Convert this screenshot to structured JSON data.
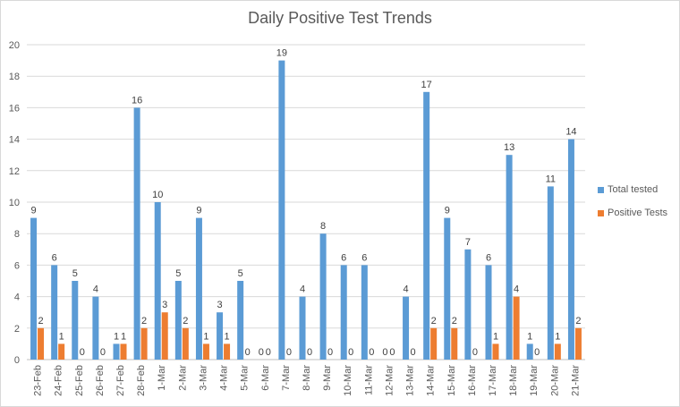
{
  "chart_data": {
    "type": "bar",
    "title": "Daily Positive Test Trends",
    "xlabel": "",
    "ylabel": "",
    "ylim": [
      0,
      20
    ],
    "yticks": [
      0,
      2,
      4,
      6,
      8,
      10,
      12,
      14,
      16,
      18,
      20
    ],
    "grid": true,
    "legend_position": "right",
    "categories": [
      "23-Feb",
      "24-Feb",
      "25-Feb",
      "26-Feb",
      "27-Feb",
      "28-Feb",
      "1-Mar",
      "2-Mar",
      "3-Mar",
      "4-Mar",
      "5-Mar",
      "6-Mar",
      "7-Mar",
      "8-Mar",
      "9-Mar",
      "10-Mar",
      "11-Mar",
      "12-Mar",
      "13-Mar",
      "14-Mar",
      "15-Mar",
      "16-Mar",
      "17-Mar",
      "18-Mar",
      "19-Mar",
      "20-Mar",
      "21-Mar"
    ],
    "series": [
      {
        "name": "Total tested",
        "color": "#5b9bd5",
        "values": [
          9,
          6,
          5,
          4,
          1,
          16,
          10,
          5,
          9,
          3,
          5,
          0,
          19,
          4,
          8,
          6,
          6,
          0,
          4,
          17,
          9,
          7,
          6,
          13,
          1,
          11,
          14
        ]
      },
      {
        "name": "Positive Tests",
        "color": "#ed7d31",
        "values": [
          2,
          1,
          0,
          0,
          1,
          2,
          3,
          2,
          1,
          1,
          0,
          0,
          0,
          0,
          0,
          0,
          0,
          0,
          0,
          2,
          2,
          0,
          1,
          4,
          0,
          1,
          2
        ]
      }
    ]
  }
}
